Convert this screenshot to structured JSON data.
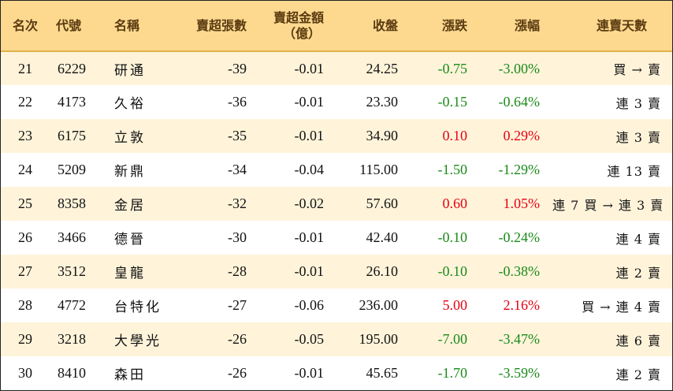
{
  "headers": {
    "rank": "名次",
    "code": "代號",
    "name": "名稱",
    "sell_lots": "賣超張數",
    "sell_amount_line1": "賣超金額",
    "sell_amount_line2": "（億）",
    "close": "收盤",
    "change": "漲跌",
    "change_pct": "漲幅",
    "days": "連賣天數"
  },
  "colors": {
    "header_bg": "#fcd98f",
    "row_alt_bg": "#fff4da",
    "up": "#e60012",
    "down": "#1a8a1a"
  },
  "rows": [
    {
      "rank": "21",
      "code": "6229",
      "name": "研通",
      "sell_lots": "-39",
      "sell_amount": "-0.01",
      "close": "24.25",
      "change": "-0.75",
      "change_pct": "-3.00%",
      "days": "買 → 賣",
      "dir": "down"
    },
    {
      "rank": "22",
      "code": "4173",
      "name": "久裕",
      "sell_lots": "-36",
      "sell_amount": "-0.01",
      "close": "23.30",
      "change": "-0.15",
      "change_pct": "-0.64%",
      "days": "連 3 賣",
      "dir": "down"
    },
    {
      "rank": "23",
      "code": "6175",
      "name": "立敦",
      "sell_lots": "-35",
      "sell_amount": "-0.01",
      "close": "34.90",
      "change": "0.10",
      "change_pct": "0.29%",
      "days": "連 3 賣",
      "dir": "up"
    },
    {
      "rank": "24",
      "code": "5209",
      "name": "新鼎",
      "sell_lots": "-34",
      "sell_amount": "-0.04",
      "close": "115.00",
      "change": "-1.50",
      "change_pct": "-1.29%",
      "days": "連 13 賣",
      "dir": "down"
    },
    {
      "rank": "25",
      "code": "8358",
      "name": "金居",
      "sell_lots": "-32",
      "sell_amount": "-0.02",
      "close": "57.60",
      "change": "0.60",
      "change_pct": "1.05%",
      "days": "連 7 買 → 連 3 賣",
      "dir": "up"
    },
    {
      "rank": "26",
      "code": "3466",
      "name": "德晉",
      "sell_lots": "-30",
      "sell_amount": "-0.01",
      "close": "42.40",
      "change": "-0.10",
      "change_pct": "-0.24%",
      "days": "連 4 賣",
      "dir": "down"
    },
    {
      "rank": "27",
      "code": "3512",
      "name": "皇龍",
      "sell_lots": "-28",
      "sell_amount": "-0.01",
      "close": "26.10",
      "change": "-0.10",
      "change_pct": "-0.38%",
      "days": "連 2 賣",
      "dir": "down"
    },
    {
      "rank": "28",
      "code": "4772",
      "name": "台特化",
      "sell_lots": "-27",
      "sell_amount": "-0.06",
      "close": "236.00",
      "change": "5.00",
      "change_pct": "2.16%",
      "days": "買 → 連 4 賣",
      "dir": "up"
    },
    {
      "rank": "29",
      "code": "3218",
      "name": "大學光",
      "sell_lots": "-26",
      "sell_amount": "-0.05",
      "close": "195.00",
      "change": "-7.00",
      "change_pct": "-3.47%",
      "days": "連 6 賣",
      "dir": "down"
    },
    {
      "rank": "30",
      "code": "8410",
      "name": "森田",
      "sell_lots": "-26",
      "sell_amount": "-0.01",
      "close": "45.65",
      "change": "-1.70",
      "change_pct": "-3.59%",
      "days": "連 2 賣",
      "dir": "down"
    }
  ]
}
